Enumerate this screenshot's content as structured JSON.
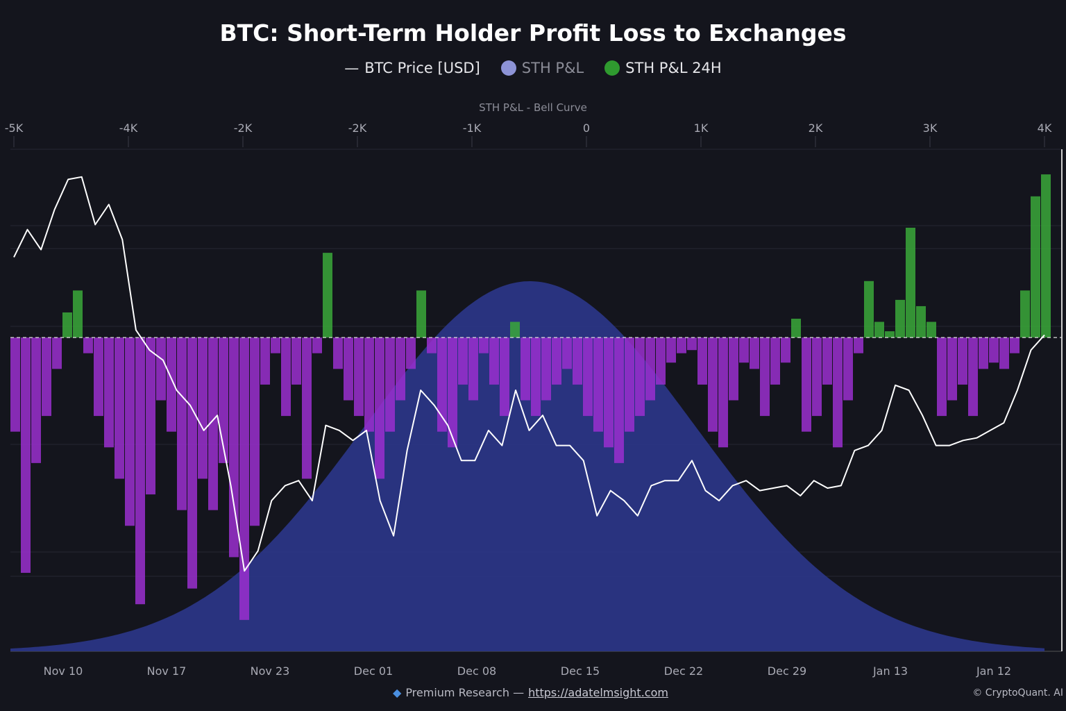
{
  "chart_data": {
    "type": "bar",
    "title": "BTC: Short-Term Holder Profit Loss to Exchanges",
    "subtitle": "STH P&L - Bell Curve",
    "legend": [
      {
        "name": "BTC Price [USD]",
        "color": "#ffffff",
        "marker": "line"
      },
      {
        "name": "STH P&L",
        "color": "#8d93d6",
        "marker": "dot"
      },
      {
        "name": "STH P&L 24H",
        "color": "#2f9a2f",
        "marker": "dot"
      }
    ],
    "legend_position": "top",
    "top_axis_ticks": [
      "-5K",
      "-4K",
      "-2K",
      "-2K",
      "-1K",
      "0",
      "1K",
      "2K",
      "3K",
      "4K"
    ],
    "bottom_axis_ticks": [
      "Nov 10",
      "Nov 17",
      "Nov 23",
      "Dec 01",
      "Dec 08",
      "Dec 15",
      "Dec 22",
      "Dec 29",
      "Jan 13",
      "Jan 12"
    ],
    "grid": true,
    "colors": {
      "positive": "#3aa83a",
      "negative": "#9a2fcf",
      "bell": "#2a3585",
      "price": "#ffffff",
      "zero_line": "#ffffff"
    },
    "bell_curve": {
      "mean": -0.5,
      "sd": 1.45
    },
    "pnl_ylim": [
      -100,
      60
    ],
    "pnl_values": [
      -30,
      -75,
      -40,
      -25,
      -10,
      8,
      15,
      -5,
      -25,
      -35,
      -45,
      -60,
      -85,
      -50,
      -20,
      -30,
      -55,
      -80,
      -45,
      -55,
      -40,
      -70,
      -90,
      -60,
      -15,
      -5,
      -25,
      -15,
      -45,
      -5,
      27,
      -10,
      -20,
      -25,
      -30,
      -45,
      -30,
      -20,
      -10,
      15,
      -5,
      -30,
      -35,
      -15,
      -20,
      -5,
      -15,
      -25,
      5,
      -20,
      -25,
      -20,
      -15,
      -10,
      -15,
      -25,
      -30,
      -35,
      -40,
      -30,
      -25,
      -20,
      -15,
      -8,
      -5,
      -4,
      -15,
      -30,
      -35,
      -20,
      -8,
      -10,
      -25,
      -15,
      -8,
      6,
      -30,
      -25,
      -15,
      -35,
      -20,
      -5,
      18,
      5,
      2,
      12,
      35,
      10,
      5,
      -25,
      -20,
      -15,
      -25,
      -10,
      -8,
      -10,
      -5,
      15,
      45,
      52
    ],
    "price_ylim": [
      0,
      100
    ],
    "price_values": [
      78.5,
      84,
      80,
      88,
      94,
      94.5,
      85,
      89,
      82,
      64,
      60,
      58,
      52,
      49,
      44,
      47,
      33,
      16,
      20,
      30,
      33,
      34,
      30,
      45,
      44,
      42,
      44,
      30,
      23,
      40,
      52,
      49,
      45,
      38,
      38,
      44,
      41,
      52,
      44,
      47,
      41,
      41,
      38,
      27,
      32,
      30,
      27,
      33,
      34,
      34,
      38,
      32,
      30,
      33,
      34,
      32,
      32.5,
      33,
      31,
      34,
      32.5,
      33,
      40,
      41,
      44,
      53,
      52,
      47,
      41,
      41,
      42,
      42.5,
      44,
      45.5,
      52,
      60,
      63
    ]
  },
  "footer": {
    "label": "Premium Research —",
    "link": "https://adatelmsight.com",
    "copyright": "© CryptoQuant. AI"
  }
}
